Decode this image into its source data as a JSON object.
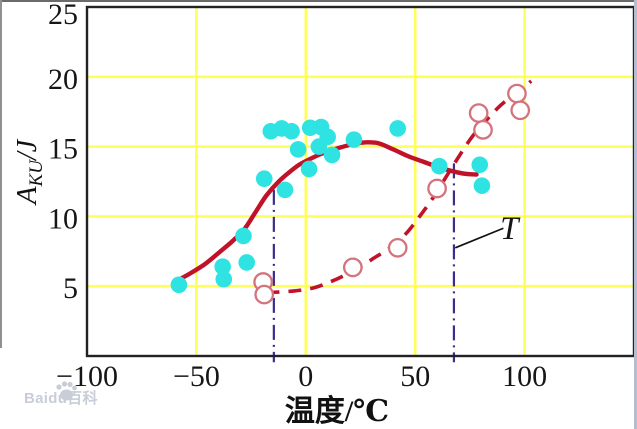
{
  "watermark": {
    "text": "Baidu百科"
  },
  "chart_data": {
    "type": "scatter",
    "title": "",
    "xlabel": "温度/℃",
    "ylabel": {
      "symbol": "A",
      "subscript": "KU",
      "unit": "/J"
    },
    "xlim": [
      -100,
      150
    ],
    "ylim": [
      0,
      25
    ],
    "grid": true,
    "x_ticks": [
      {
        "value": -100,
        "label": "−100"
      },
      {
        "value": -50,
        "label": "−50"
      },
      {
        "value": 0,
        "label": "0"
      },
      {
        "value": 50,
        "label": "50"
      },
      {
        "value": 100,
        "label": "100"
      }
    ],
    "y_ticks": [
      {
        "value": 5,
        "label": "5"
      },
      {
        "value": 10,
        "label": "10"
      },
      {
        "value": 15,
        "label": "15"
      },
      {
        "value": 20,
        "label": "20"
      },
      {
        "value": 25,
        "label": "25"
      }
    ],
    "colors": {
      "grid": "#ffff5a",
      "axis": "#222222",
      "filled_point": "#2fe3e3",
      "open_point_stroke": "#d4737c",
      "curve": "#c01228",
      "vline": "#3c2d8d",
      "leader": "#111111"
    },
    "series": [
      {
        "name": "impact-energy-filled-points",
        "kind": "scatter-filled",
        "color": "#2fe3e3",
        "points": [
          [
            -58,
            5.1
          ],
          [
            -38,
            6.4
          ],
          [
            -37.5,
            5.5
          ],
          [
            -28.5,
            8.6
          ],
          [
            -27,
            6.7
          ],
          [
            -19,
            12.7
          ],
          [
            -16,
            16.1
          ],
          [
            -11,
            16.3
          ],
          [
            -9.5,
            11.9
          ],
          [
            -6.5,
            16.1
          ],
          [
            -3.5,
            14.8
          ],
          [
            1.5,
            13.4
          ],
          [
            2,
            16.35
          ],
          [
            6,
            15.0
          ],
          [
            7,
            16.4
          ],
          [
            10,
            15.7
          ],
          [
            12,
            14.4
          ],
          [
            22,
            15.5
          ],
          [
            42,
            16.3
          ],
          [
            61,
            13.6
          ],
          [
            79.5,
            13.7
          ],
          [
            80.5,
            12.2
          ]
        ]
      },
      {
        "name": "impact-energy-open-points",
        "kind": "scatter-open",
        "color": "#d4737c",
        "points": [
          [
            -19.5,
            5.3
          ],
          [
            -19,
            4.4
          ],
          [
            21.5,
            6.35
          ],
          [
            42,
            7.75
          ],
          [
            60,
            12.0
          ],
          [
            79,
            17.4
          ],
          [
            81,
            16.2
          ],
          [
            96.5,
            18.8
          ],
          [
            98,
            17.6
          ]
        ]
      },
      {
        "name": "fitted-curve-solid",
        "kind": "line-solid",
        "color": "#c01228",
        "points": [
          [
            -60,
            5.3
          ],
          [
            -53,
            5.9
          ],
          [
            -46,
            6.6
          ],
          [
            -39,
            7.5
          ],
          [
            -33,
            8.3
          ],
          [
            -28,
            9.1
          ],
          [
            -23,
            10.3
          ],
          [
            -18,
            11.5
          ],
          [
            -13,
            12.4
          ],
          [
            -8,
            13.1
          ],
          [
            -3,
            13.7
          ],
          [
            3,
            14.2
          ],
          [
            9,
            14.6
          ],
          [
            15,
            14.9
          ],
          [
            21,
            15.15
          ],
          [
            27,
            15.3
          ],
          [
            33,
            15.25
          ],
          [
            40,
            14.8
          ],
          [
            47,
            14.3
          ],
          [
            54,
            13.9
          ],
          [
            61,
            13.5
          ],
          [
            68,
            13.2
          ],
          [
            73,
            13.05
          ],
          [
            78,
            13.0
          ]
        ]
      },
      {
        "name": "fitted-curve-dashed",
        "kind": "line-dashed",
        "color": "#c01228",
        "points": [
          [
            -18,
            4.55
          ],
          [
            -10,
            4.6
          ],
          [
            -3,
            4.7
          ],
          [
            4,
            4.9
          ],
          [
            11,
            5.3
          ],
          [
            18,
            5.8
          ],
          [
            25,
            6.4
          ],
          [
            32,
            7.1
          ],
          [
            39,
            7.8
          ],
          [
            46,
            8.8
          ],
          [
            52,
            10.0
          ],
          [
            58,
            11.3
          ],
          [
            64,
            12.8
          ],
          [
            70,
            14.3
          ],
          [
            76,
            15.7
          ],
          [
            82,
            16.8
          ],
          [
            88,
            17.8
          ],
          [
            94,
            18.6
          ],
          [
            100,
            19.3
          ],
          [
            103,
            19.7
          ]
        ]
      }
    ],
    "annotations": {
      "t_label": "T",
      "t_label_pos": {
        "x": 93,
        "y": 9.1
      },
      "leader_line": {
        "x1": 68.3,
        "y1": 7.75,
        "x2": 90.3,
        "y2": 9.15
      },
      "vlines": [
        {
          "x": -14.6,
          "y_top": 11.9,
          "y_bottom": -0.45
        },
        {
          "x": 67.7,
          "y_top": 13.8,
          "y_bottom": -0.45
        }
      ]
    }
  }
}
